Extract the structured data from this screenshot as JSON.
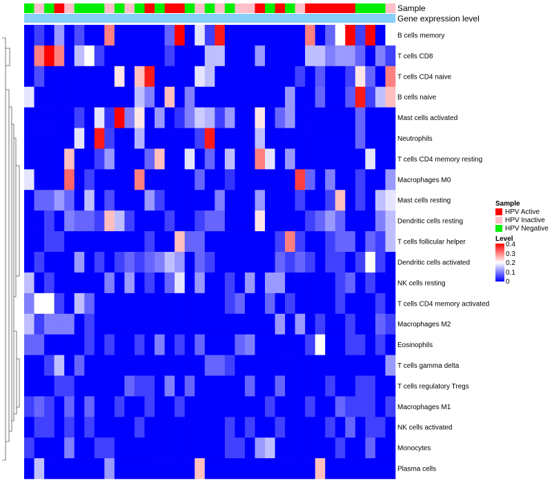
{
  "chart_data": {
    "type": "heatmap",
    "title": "",
    "track_labels": {
      "sample": "Sample",
      "gene_expression": "Gene expression level"
    },
    "sample_legend": {
      "title": "Sample",
      "entries": [
        {
          "label": "HPV Active",
          "color": "#ff0000"
        },
        {
          "label": "HPV Inactive",
          "color": "#ffc0cb"
        },
        {
          "label": "HPV Negative",
          "color": "#00ee00"
        }
      ]
    },
    "level_legend": {
      "title": "Level",
      "ticks": [
        "0.4",
        "0.3",
        "0.2",
        "0.1",
        "0"
      ],
      "range": [
        0,
        0.4
      ],
      "low_color": "#0000ff",
      "mid_color": "#ffffff",
      "high_color": "#ff0000"
    },
    "sample_track": [
      "N",
      "I",
      "N",
      "A",
      "I",
      "N",
      "N",
      "N",
      "I",
      "N",
      "I",
      "N",
      "A",
      "N",
      "A",
      "A",
      "N",
      "I",
      "N",
      "I",
      "N",
      "I",
      "I",
      "A",
      "N",
      "A",
      "N",
      "I",
      "A",
      "A",
      "A",
      "A",
      "A",
      "N",
      "N",
      "N",
      "I"
    ],
    "row_labels": [
      "B cells memory",
      "T cells CD8",
      "T cells CD4 naive",
      "B cells naive",
      "Mast cells activated",
      "Neutrophils",
      "T cells CD4 memory resting",
      "Macrophages M0",
      "Mast cells resting",
      "Dendritic cells resting",
      "T cells follicular helper",
      "Dendritic cells activated",
      "NK cells resting",
      "T cells CD4 memory activated",
      "Macrophages M2",
      "Eosinophils",
      "T cells gamma delta",
      "T cells regulatory  Tregs",
      "Macrophages M1",
      "NK cells activated",
      "Monocytes",
      "Plasma cells"
    ],
    "matrix": [
      [
        0.0,
        0.05,
        0.0,
        0.12,
        0.0,
        0.06,
        0.0,
        0.0,
        0.3,
        0.0,
        0.0,
        0.0,
        0.0,
        0.0,
        0.08,
        0.4,
        0.0,
        0.18,
        0.05,
        0.38,
        0.0,
        0.0,
        0.0,
        0.0,
        0.0,
        0.0,
        0.0,
        0.0,
        0.3,
        0.0,
        0.08,
        0.2,
        0.4,
        0.05,
        0.4,
        0.0,
        0.2
      ],
      [
        0.0,
        0.3,
        0.4,
        0.3,
        0.0,
        0.15,
        0.2,
        0.05,
        0.0,
        0.0,
        0.0,
        0.0,
        0.0,
        0.0,
        0.05,
        0.0,
        0.0,
        0.0,
        0.15,
        0.15,
        0.0,
        0.0,
        0.0,
        0.12,
        0.0,
        0.0,
        0.0,
        0.0,
        0.15,
        0.15,
        0.1,
        0.12,
        0.12,
        0.08,
        0.0,
        0.1,
        0.05
      ],
      [
        0.0,
        0.06,
        0.0,
        0.0,
        0.0,
        0.0,
        0.0,
        0.0,
        0.0,
        0.22,
        0.0,
        0.25,
        0.38,
        0.0,
        0.0,
        0.0,
        0.0,
        0.18,
        0.15,
        0.0,
        0.0,
        0.0,
        0.0,
        0.0,
        0.0,
        0.0,
        0.0,
        0.05,
        0.0,
        0.07,
        0.0,
        0.0,
        0.05,
        0.22,
        0.08,
        0.0,
        0.3
      ],
      [
        0.18,
        0.0,
        0.0,
        0.0,
        0.0,
        0.0,
        0.0,
        0.0,
        0.0,
        0.0,
        0.0,
        0.15,
        0.1,
        0.0,
        0.25,
        0.0,
        0.1,
        0.0,
        0.0,
        0.0,
        0.0,
        0.0,
        0.0,
        0.0,
        0.0,
        0.0,
        0.12,
        0.0,
        0.0,
        0.08,
        0.0,
        0.0,
        0.07,
        0.38,
        0.05,
        0.15,
        0.25
      ],
      [
        0.0,
        0.0,
        0.0,
        0.0,
        0.0,
        0.05,
        0.0,
        0.18,
        0.04,
        0.4,
        0.1,
        0.22,
        0.0,
        0.12,
        0.0,
        0.04,
        0.1,
        0.16,
        0.14,
        0.05,
        0.12,
        0.0,
        0.0,
        0.22,
        0.0,
        0.08,
        0.12,
        0.0,
        0.0,
        0.0,
        0.0,
        0.0,
        0.0,
        0.08,
        0.0,
        0.0,
        0.0
      ],
      [
        0.0,
        0.0,
        0.0,
        0.0,
        0.0,
        0.18,
        0.0,
        0.38,
        0.05,
        0.0,
        0.0,
        0.14,
        0.0,
        0.0,
        0.0,
        0.0,
        0.0,
        0.05,
        0.38,
        0.0,
        0.0,
        0.0,
        0.0,
        0.15,
        0.0,
        0.0,
        0.0,
        0.0,
        0.0,
        0.0,
        0.0,
        0.0,
        0.0,
        0.08,
        0.0,
        0.0,
        0.0
      ],
      [
        0.0,
        0.0,
        0.0,
        0.0,
        0.25,
        0.0,
        0.0,
        0.05,
        0.12,
        0.0,
        0.0,
        0.0,
        0.08,
        0.25,
        0.0,
        0.0,
        0.18,
        0.0,
        0.08,
        0.0,
        0.15,
        0.0,
        0.0,
        0.3,
        0.18,
        0.0,
        0.12,
        0.0,
        0.0,
        0.0,
        0.0,
        0.0,
        0.0,
        0.0,
        0.18,
        0.0,
        0.0
      ],
      [
        0.18,
        0.0,
        0.0,
        0.0,
        0.32,
        0.0,
        0.05,
        0.0,
        0.0,
        0.0,
        0.0,
        0.3,
        0.0,
        0.0,
        0.0,
        0.0,
        0.0,
        0.08,
        0.0,
        0.0,
        0.04,
        0.0,
        0.0,
        0.0,
        0.0,
        0.0,
        0.0,
        0.35,
        0.08,
        0.0,
        0.1,
        0.0,
        0.0,
        0.05,
        0.0,
        0.0,
        0.12
      ],
      [
        0.0,
        0.08,
        0.08,
        0.12,
        0.08,
        0.0,
        0.15,
        0.0,
        0.06,
        0.0,
        0.0,
        0.0,
        0.12,
        0.05,
        0.0,
        0.0,
        0.0,
        0.0,
        0.0,
        0.1,
        0.0,
        0.0,
        0.0,
        0.12,
        0.0,
        0.0,
        0.0,
        0.05,
        0.0,
        0.0,
        0.05,
        0.25,
        0.0,
        0.05,
        0.0,
        0.15,
        0.18
      ],
      [
        0.0,
        0.0,
        0.05,
        0.0,
        0.1,
        0.08,
        0.08,
        0.05,
        0.25,
        0.15,
        0.05,
        0.0,
        0.0,
        0.0,
        0.05,
        0.0,
        0.0,
        0.05,
        0.08,
        0.08,
        0.0,
        0.0,
        0.0,
        0.22,
        0.0,
        0.0,
        0.0,
        0.0,
        0.05,
        0.08,
        0.12,
        0.08,
        0.0,
        0.0,
        0.0,
        0.1,
        0.15
      ],
      [
        0.0,
        0.0,
        0.05,
        0.05,
        0.0,
        0.0,
        0.0,
        0.0,
        0.0,
        0.0,
        0.0,
        0.0,
        0.05,
        0.0,
        0.0,
        0.25,
        0.08,
        0.08,
        0.0,
        0.0,
        0.0,
        0.0,
        0.0,
        0.0,
        0.0,
        0.05,
        0.3,
        0.05,
        0.0,
        0.0,
        0.05,
        0.08,
        0.08,
        0.0,
        0.08,
        0.05,
        0.15
      ],
      [
        0.0,
        0.05,
        0.0,
        0.0,
        0.0,
        0.12,
        0.0,
        0.05,
        0.0,
        0.05,
        0.08,
        0.05,
        0.08,
        0.1,
        0.15,
        0.12,
        0.0,
        0.08,
        0.05,
        0.0,
        0.0,
        0.0,
        0.0,
        0.0,
        0.0,
        0.08,
        0.05,
        0.08,
        0.05,
        0.0,
        0.05,
        0.05,
        0.0,
        0.05,
        0.2,
        0.05,
        0.0
      ],
      [
        0.15,
        0.0,
        0.05,
        0.0,
        0.0,
        0.0,
        0.0,
        0.0,
        0.1,
        0.0,
        0.12,
        0.0,
        0.05,
        0.0,
        0.08,
        0.18,
        0.0,
        0.12,
        0.0,
        0.0,
        0.05,
        0.0,
        0.12,
        0.0,
        0.12,
        0.12,
        0.0,
        0.0,
        0.0,
        0.0,
        0.0,
        0.05,
        0.08,
        0.0,
        0.05,
        0.0,
        0.0
      ],
      [
        0.1,
        0.2,
        0.2,
        0.05,
        0.0,
        0.15,
        0.08,
        0.0,
        0.0,
        0.0,
        0.0,
        0.0,
        0.0,
        0.0,
        0.0,
        0.0,
        0.0,
        0.0,
        0.0,
        0.0,
        0.05,
        0.08,
        0.0,
        0.0,
        0.08,
        0.0,
        0.05,
        0.0,
        0.0,
        0.0,
        0.0,
        0.05,
        0.0,
        0.0,
        0.0,
        0.05,
        0.0
      ],
      [
        0.15,
        0.05,
        0.1,
        0.1,
        0.1,
        0.0,
        0.05,
        0.0,
        0.0,
        0.0,
        0.0,
        0.0,
        0.0,
        0.0,
        0.0,
        0.0,
        0.0,
        0.0,
        0.0,
        0.0,
        0.0,
        0.0,
        0.0,
        0.0,
        0.0,
        0.12,
        0.0,
        0.12,
        0.0,
        0.05,
        0.0,
        0.0,
        0.05,
        0.0,
        0.0,
        0.08,
        0.05
      ],
      [
        0.08,
        0.08,
        0.0,
        0.0,
        0.0,
        0.0,
        0.05,
        0.0,
        0.05,
        0.0,
        0.0,
        0.05,
        0.0,
        0.1,
        0.0,
        0.05,
        0.0,
        0.08,
        0.0,
        0.0,
        0.0,
        0.08,
        0.1,
        0.0,
        0.0,
        0.0,
        0.0,
        0.0,
        0.05,
        0.2,
        0.0,
        0.0,
        0.05,
        0.05,
        0.0,
        0.05,
        0.0
      ],
      [
        0.0,
        0.0,
        0.05,
        0.15,
        0.0,
        0.08,
        0.0,
        0.0,
        0.0,
        0.0,
        0.0,
        0.0,
        0.0,
        0.0,
        0.0,
        0.0,
        0.0,
        0.0,
        0.08,
        0.08,
        0.05,
        0.0,
        0.0,
        0.0,
        0.0,
        0.0,
        0.0,
        0.0,
        0.0,
        0.0,
        0.0,
        0.0,
        0.0,
        0.0,
        0.0,
        0.0,
        0.12
      ],
      [
        0.0,
        0.0,
        0.0,
        0.05,
        0.05,
        0.0,
        0.0,
        0.0,
        0.0,
        0.0,
        0.08,
        0.05,
        0.05,
        0.0,
        0.1,
        0.0,
        0.08,
        0.0,
        0.0,
        0.0,
        0.0,
        0.0,
        0.08,
        0.0,
        0.0,
        0.08,
        0.0,
        0.0,
        0.0,
        0.0,
        0.05,
        0.0,
        0.0,
        0.05,
        0.05,
        0.0,
        0.0
      ],
      [
        0.05,
        0.08,
        0.05,
        0.0,
        0.08,
        0.0,
        0.08,
        0.0,
        0.0,
        0.05,
        0.0,
        0.0,
        0.05,
        0.0,
        0.0,
        0.05,
        0.0,
        0.0,
        0.0,
        0.0,
        0.0,
        0.0,
        0.0,
        0.0,
        0.05,
        0.0,
        0.0,
        0.0,
        0.05,
        0.0,
        0.0,
        0.08,
        0.05,
        0.05,
        0.05,
        0.0,
        0.05
      ],
      [
        0.0,
        0.05,
        0.05,
        0.0,
        0.05,
        0.0,
        0.05,
        0.0,
        0.0,
        0.0,
        0.0,
        0.05,
        0.0,
        0.0,
        0.0,
        0.0,
        0.0,
        0.0,
        0.0,
        0.0,
        0.05,
        0.0,
        0.05,
        0.0,
        0.0,
        0.05,
        0.0,
        0.0,
        0.0,
        0.0,
        0.05,
        0.0,
        0.08,
        0.0,
        0.05,
        0.05,
        0.0
      ],
      [
        0.05,
        0.0,
        0.0,
        0.0,
        0.1,
        0.0,
        0.0,
        0.05,
        0.05,
        0.0,
        0.0,
        0.0,
        0.0,
        0.0,
        0.0,
        0.0,
        0.0,
        0.0,
        0.0,
        0.0,
        0.05,
        0.05,
        0.0,
        0.12,
        0.15,
        0.0,
        0.0,
        0.0,
        0.0,
        0.0,
        0.0,
        0.05,
        0.0,
        0.0,
        0.08,
        0.0,
        0.0
      ],
      [
        0.0,
        0.15,
        0.0,
        0.0,
        0.0,
        0.0,
        0.0,
        0.0,
        0.12,
        0.0,
        0.0,
        0.0,
        0.0,
        0.0,
        0.0,
        0.0,
        0.0,
        0.25,
        0.0,
        0.0,
        0.0,
        0.0,
        0.0,
        0.0,
        0.0,
        0.0,
        0.0,
        0.0,
        0.0,
        0.25,
        0.0,
        0.0,
        0.0,
        0.0,
        0.0,
        0.0,
        0.0
      ]
    ]
  }
}
